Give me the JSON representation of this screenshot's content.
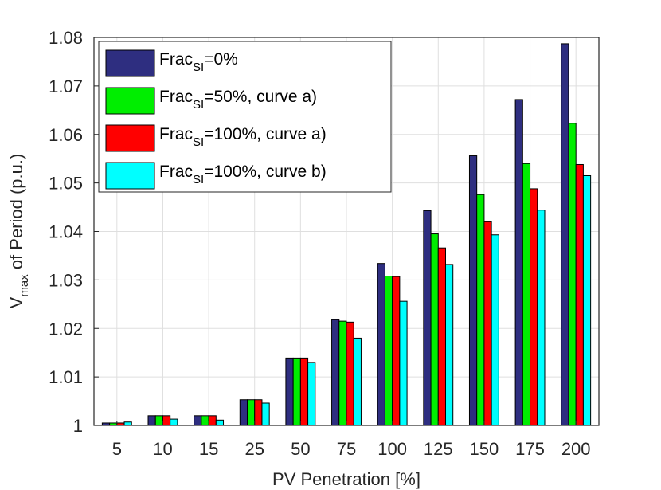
{
  "chart_data": {
    "type": "bar",
    "xlabel": "PV Penetration [%]",
    "ylabel": {
      "main": "V",
      "sub": "max",
      "rest": " of Period (p.u.)"
    },
    "categories": [
      "5",
      "10",
      "15",
      "25",
      "50",
      "75",
      "100",
      "125",
      "150",
      "175",
      "200"
    ],
    "ylim": [
      1,
      1.08
    ],
    "yticks": [
      "1",
      "1.01",
      "1.02",
      "1.03",
      "1.04",
      "1.05",
      "1.06",
      "1.07",
      "1.08"
    ],
    "grid": true,
    "legend_position": "top-left",
    "series": [
      {
        "label": {
          "main": "Frac",
          "sub": "SI",
          "rest": "=0%"
        },
        "color": "#2e2e80",
        "values": [
          1.0005,
          1.002,
          1.002,
          1.0053,
          1.0139,
          1.0218,
          1.0334,
          1.0443,
          1.0556,
          1.0672,
          1.0787
        ]
      },
      {
        "label": {
          "main": "Frac",
          "sub": "SI",
          "rest": "=50%, curve a)"
        },
        "color": "#00ee00",
        "values": [
          1.0005,
          1.002,
          1.002,
          1.0053,
          1.0139,
          1.0215,
          1.0308,
          1.0395,
          1.0476,
          1.054,
          1.0623
        ]
      },
      {
        "label": {
          "main": "Frac",
          "sub": "SI",
          "rest": "=100%, curve a)"
        },
        "color": "#ff0000",
        "values": [
          1.0005,
          1.002,
          1.002,
          1.0053,
          1.0139,
          1.0213,
          1.0307,
          1.0366,
          1.042,
          1.0488,
          1.0538
        ]
      },
      {
        "label": {
          "main": "Frac",
          "sub": "SI",
          "rest": "=100%, curve b)"
        },
        "color": "#00ffff",
        "values": [
          1.0007,
          1.0013,
          1.0011,
          1.0046,
          1.013,
          1.018,
          1.0256,
          1.0332,
          1.0393,
          1.0444,
          1.0515
        ]
      }
    ]
  }
}
